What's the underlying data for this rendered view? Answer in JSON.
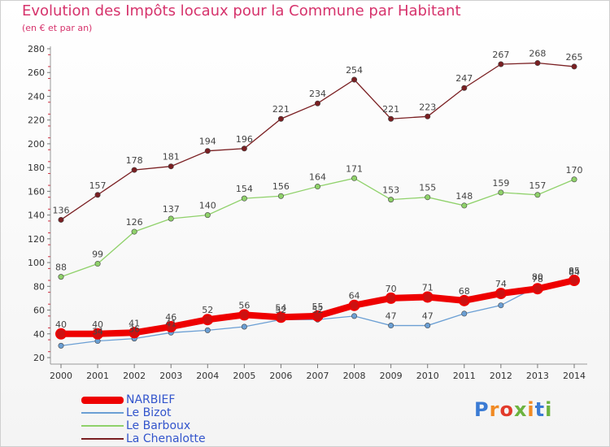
{
  "header": {
    "title": "Evolution des Impôts locaux pour la Commune par Habitant",
    "subtitle": "(en € et par an)"
  },
  "logo": {
    "text": "Proxiti",
    "colors": [
      "#3b7bd4",
      "#f08a24",
      "#e23b2b",
      "#6cb33f",
      "#f08a24",
      "#3b7bd4",
      "#6cb33f"
    ]
  },
  "chart_data": {
    "type": "line",
    "title": "Evolution des Impôts locaux pour la Commune par Habitant",
    "subtitle": "(en € et par an)",
    "xlabel": "",
    "ylabel": "",
    "x": [
      "2000",
      "2001",
      "2002",
      "2003",
      "2004",
      "2005",
      "2006",
      "2007",
      "2008",
      "2009",
      "2010",
      "2011",
      "2012",
      "2013",
      "2014"
    ],
    "ylim": [
      20,
      280
    ],
    "yticks": [
      20,
      40,
      60,
      80,
      100,
      120,
      140,
      160,
      180,
      200,
      220,
      240,
      260,
      280
    ],
    "grid": false,
    "legend_position": "bottom-left",
    "series": [
      {
        "name": "La Chenalotte",
        "color": "#7a1f22",
        "line_width": 1.3,
        "values": [
          136,
          157,
          178,
          181,
          194,
          196,
          221,
          234,
          254,
          221,
          223,
          247,
          267,
          268,
          265
        ],
        "labels": [
          "136",
          "157",
          "178",
          "181",
          "194",
          "196",
          "221",
          "234",
          "254",
          "221",
          "223",
          "247",
          "267",
          "268",
          "265"
        ]
      },
      {
        "name": "Le Barboux",
        "color": "#8fd16a",
        "line_width": 1.3,
        "values": [
          88,
          99,
          126,
          137,
          140,
          154,
          156,
          164,
          171,
          153,
          155,
          148,
          159,
          157,
          170
        ],
        "labels": [
          "88",
          "99",
          "126",
          "137",
          "140",
          "154",
          "156",
          "164",
          "171",
          "153",
          "155",
          "148",
          "159",
          "157",
          "170"
        ]
      },
      {
        "name": "Le Bizot",
        "color": "#6b9fd4",
        "line_width": 1.3,
        "values": [
          30,
          34,
          36,
          41,
          43,
          46,
          52,
          52,
          55,
          47,
          47,
          57,
          64,
          80,
          84
        ],
        "labels": [
          "",
          "34",
          "36",
          "41",
          "",
          "",
          "52",
          "52",
          "",
          "47",
          "47",
          "",
          "",
          "80",
          "84"
        ]
      },
      {
        "name": "NARBIEF",
        "color": "#ee0000",
        "line_width": 8,
        "values": [
          40,
          40,
          41,
          46,
          52,
          56,
          54,
          55,
          64,
          70,
          71,
          68,
          74,
          78,
          85
        ],
        "labels": [
          "40",
          "40",
          "41",
          "46",
          "52",
          "56",
          "54",
          "55",
          "64",
          "70",
          "71",
          "68",
          "74",
          "78",
          "85"
        ]
      }
    ],
    "legend": [
      "NARBIEF",
      "Le Bizot",
      "Le Barboux",
      "La Chenalotte"
    ]
  }
}
